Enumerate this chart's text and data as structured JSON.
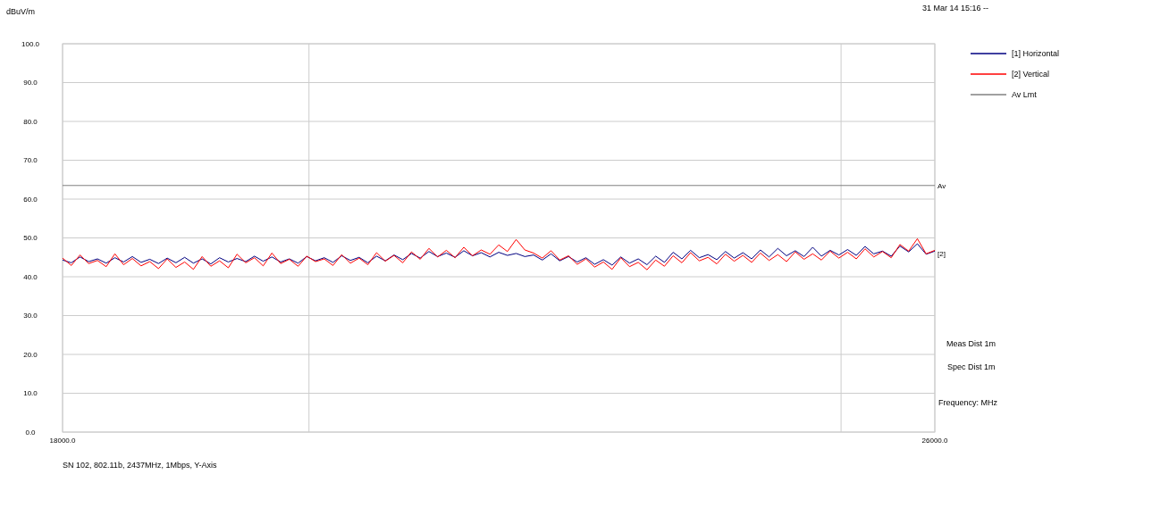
{
  "chart_data": {
    "type": "line",
    "xlabel": "Frequency: MHz",
    "ylabel": "dBuV/m",
    "annotations": [
      "31 Mar 14 15:16 --",
      "Meas Dist 1m",
      "Spec Dist 1m",
      "SN 102, 802.11b, 2437MHz, 1Mbps, Y-Axis",
      {
        "text": "Av",
        "x": 26000,
        "y": 63.5
      },
      {
        "text": "[2]",
        "x": 26000,
        "y": 45.9
      }
    ],
    "xlim": [
      18000,
      26000
    ],
    "xticks": [
      {
        "value": 18000,
        "label": "18000.0"
      },
      {
        "value": 20260,
        "label": null
      },
      {
        "value": 25140,
        "label": null
      },
      {
        "value": 26000,
        "label": "26000.0"
      }
    ],
    "ylim": [
      0,
      100
    ],
    "yticks": [
      {
        "value": 0,
        "label": "0.0"
      },
      {
        "value": 10,
        "label": "10.0"
      },
      {
        "value": 20,
        "label": "20.0"
      },
      {
        "value": 30,
        "label": "30.0"
      },
      {
        "value": 40,
        "label": "40.0"
      },
      {
        "value": 50,
        "label": "50.0"
      },
      {
        "value": 60,
        "label": "60.0"
      },
      {
        "value": 70,
        "label": "70.0"
      },
      {
        "value": 80,
        "label": "80.0"
      },
      {
        "value": 90,
        "label": "90.0"
      },
      {
        "value": 100,
        "label": "100.0"
      }
    ],
    "grid": true,
    "legend": "top right",
    "marker": "none",
    "line_style": "solid",
    "x": [
      18000,
      18080,
      18160,
      18240,
      18320,
      18400,
      18480,
      18560,
      18640,
      18720,
      18800,
      18880,
      18960,
      19040,
      19120,
      19200,
      19280,
      19360,
      19440,
      19520,
      19600,
      19680,
      19760,
      19840,
      19920,
      20000,
      20080,
      20160,
      20240,
      20320,
      20400,
      20480,
      20560,
      20640,
      20720,
      20800,
      20880,
      20960,
      21040,
      21120,
      21200,
      21280,
      21360,
      21440,
      21520,
      21600,
      21680,
      21760,
      21840,
      21920,
      22000,
      22080,
      22160,
      22240,
      22320,
      22400,
      22480,
      22560,
      22640,
      22720,
      22800,
      22880,
      22960,
      23040,
      23120,
      23200,
      23280,
      23360,
      23440,
      23520,
      23600,
      23680,
      23760,
      23840,
      23920,
      24000,
      24080,
      24160,
      24240,
      24320,
      24400,
      24480,
      24560,
      24640,
      24720,
      24800,
      24880,
      24960,
      25040,
      25120,
      25200,
      25280,
      25360,
      25440,
      25520,
      25600,
      25680,
      25760,
      25840,
      25920,
      26000
    ],
    "series": [
      {
        "name": "[1] Horizontal",
        "color": "#000080",
        "values": [
          44.3,
          43.6,
          45.1,
          43.9,
          44.6,
          43.5,
          44.9,
          43.8,
          45.2,
          43.7,
          44.5,
          43.4,
          44.8,
          43.6,
          45.0,
          43.5,
          44.6,
          43.3,
          44.9,
          43.8,
          44.7,
          43.9,
          45.3,
          44.0,
          45.1,
          43.8,
          44.6,
          43.5,
          45.2,
          44.1,
          44.9,
          43.7,
          45.4,
          44.2,
          45.0,
          43.6,
          45.3,
          44.1,
          45.6,
          44.4,
          46.0,
          44.8,
          46.5,
          45.2,
          46.1,
          45.0,
          46.7,
          45.4,
          46.2,
          45.1,
          46.3,
          45.5,
          46.0,
          45.2,
          45.6,
          44.3,
          45.9,
          44.1,
          45.2,
          43.8,
          44.9,
          43.2,
          44.4,
          43.0,
          45.1,
          43.5,
          44.6,
          43.1,
          45.3,
          43.7,
          46.3,
          44.6,
          46.8,
          44.9,
          45.7,
          44.4,
          46.5,
          44.8,
          46.2,
          44.6,
          46.9,
          45.1,
          47.3,
          45.4,
          46.7,
          45.2,
          47.6,
          45.3,
          46.8,
          45.6,
          47.0,
          45.5,
          47.8,
          45.9,
          46.6,
          45.3,
          47.9,
          46.4,
          48.5,
          45.8,
          46.6
        ]
      },
      {
        "name": "[2] Vertical",
        "color": "#ff0000",
        "values": [
          44.8,
          42.9,
          45.6,
          43.4,
          44.2,
          42.6,
          45.9,
          43.1,
          44.7,
          42.8,
          43.9,
          42.1,
          44.6,
          42.4,
          43.8,
          41.9,
          45.2,
          42.7,
          44.1,
          42.3,
          45.8,
          43.6,
          44.9,
          42.8,
          46.1,
          43.4,
          44.5,
          42.7,
          45.3,
          43.9,
          44.6,
          42.9,
          45.7,
          43.5,
          44.8,
          43.1,
          46.2,
          44.0,
          45.5,
          43.6,
          46.4,
          44.5,
          47.3,
          45.1,
          46.8,
          44.9,
          47.6,
          45.4,
          46.9,
          45.8,
          48.2,
          46.5,
          49.6,
          46.9,
          46.1,
          44.8,
          46.7,
          44.3,
          45.4,
          43.2,
          44.6,
          42.5,
          43.8,
          41.9,
          44.9,
          42.6,
          43.7,
          41.8,
          44.3,
          42.7,
          45.4,
          43.6,
          46.2,
          44.1,
          45.0,
          43.3,
          45.8,
          44.0,
          45.5,
          43.7,
          46.1,
          44.2,
          45.7,
          43.9,
          46.4,
          44.5,
          45.9,
          44.3,
          46.6,
          44.8,
          46.3,
          44.6,
          47.2,
          45.1,
          46.5,
          44.9,
          48.3,
          46.6,
          49.8,
          45.9,
          46.8
        ]
      },
      {
        "name": "Av Lmt",
        "color": "#808080",
        "x": [
          18000,
          26000
        ],
        "values": [
          63.5,
          63.5
        ]
      }
    ]
  }
}
